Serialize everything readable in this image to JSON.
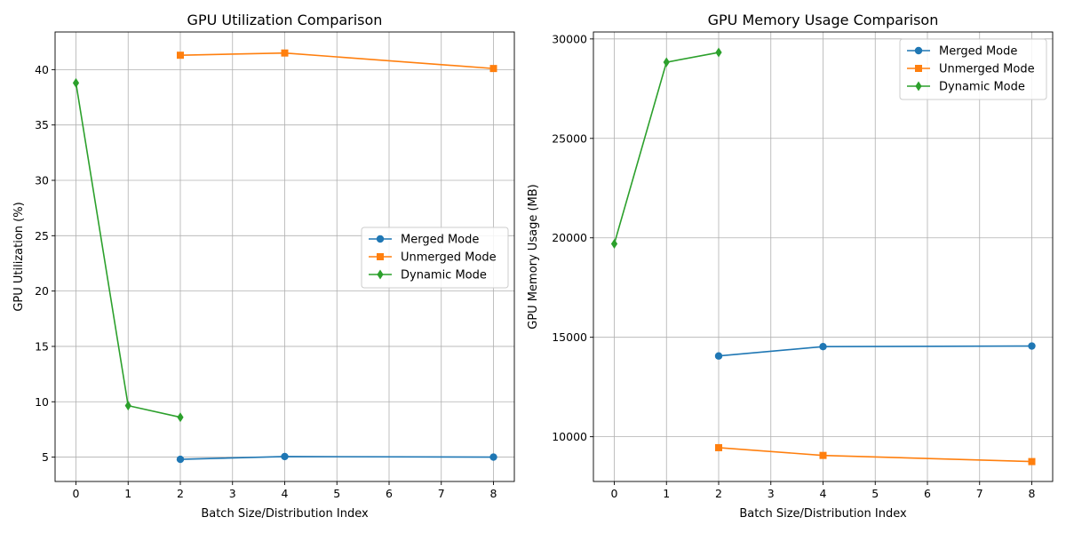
{
  "chart_data": [
    {
      "type": "line",
      "title": "GPU Utilization Comparison",
      "xlabel": "Batch Size/Distribution Index",
      "ylabel": "GPU Utilization (%)",
      "xlim": [
        -0.4,
        8.4
      ],
      "ylim": [
        2.8,
        43.4
      ],
      "xticks": [
        0,
        1,
        2,
        3,
        4,
        5,
        6,
        7,
        8
      ],
      "yticks": [
        5,
        10,
        15,
        20,
        25,
        30,
        35,
        40
      ],
      "grid": true,
      "legend_position": "center-right",
      "series": [
        {
          "name": "Merged Mode",
          "color": "#1f77b4",
          "marker": "circle",
          "x": [
            2,
            4,
            8
          ],
          "y": [
            4.8,
            5.05,
            5.0
          ]
        },
        {
          "name": "Unmerged Mode",
          "color": "#ff7f0e",
          "marker": "square",
          "x": [
            2,
            4,
            8
          ],
          "y": [
            41.3,
            41.5,
            40.1
          ]
        },
        {
          "name": "Dynamic Mode",
          "color": "#2ca02c",
          "marker": "diamond",
          "x": [
            0,
            1,
            2
          ],
          "y": [
            38.8,
            9.65,
            8.6
          ]
        }
      ]
    },
    {
      "type": "line",
      "title": "GPU Memory Usage Comparison",
      "xlabel": "Batch Size/Distribution Index",
      "ylabel": "GPU Memory Usage (MB)",
      "xlim": [
        -0.4,
        8.4
      ],
      "ylim": [
        7750,
        30350
      ],
      "xticks": [
        0,
        1,
        2,
        3,
        4,
        5,
        6,
        7,
        8
      ],
      "yticks": [
        10000,
        15000,
        20000,
        25000,
        30000
      ],
      "grid": true,
      "legend_position": "top-right",
      "series": [
        {
          "name": "Merged Mode",
          "color": "#1f77b4",
          "marker": "circle",
          "x": [
            2,
            4,
            8
          ],
          "y": [
            14060,
            14530,
            14560
          ]
        },
        {
          "name": "Unmerged Mode",
          "color": "#ff7f0e",
          "marker": "square",
          "x": [
            2,
            4,
            8
          ],
          "y": [
            9450,
            9060,
            8750
          ]
        },
        {
          "name": "Dynamic Mode",
          "color": "#2ca02c",
          "marker": "diamond",
          "x": [
            0,
            1,
            2
          ],
          "y": [
            19700,
            28830,
            29320
          ]
        }
      ]
    }
  ]
}
